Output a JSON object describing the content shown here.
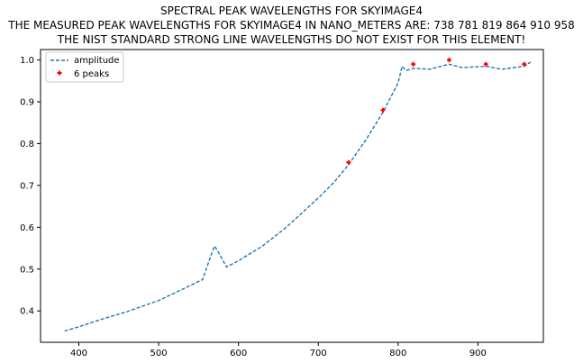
{
  "chart_data": {
    "type": "line",
    "title_lines": [
      "SPECTRAL PEAK WAVELENGTHS FOR SKYIMAGE4",
      "THE MEASURED PEAK WAVELENGTHS FOR SKYIMAGE4 IN NANO_METERS ARE: 738 781 819 864 910 958",
      "THE NIST STANDARD STRONG LINE WAVELENGTHS DO NOT EXIST FOR THIS ELEMENT!"
    ],
    "xlim": [
      352,
      982
    ],
    "ylim": [
      0.325,
      1.025
    ],
    "xticks": [
      400,
      500,
      600,
      700,
      800,
      900
    ],
    "yticks": [
      0.4,
      0.5,
      0.6,
      0.7,
      0.8,
      0.9,
      1.0
    ],
    "ytick_labels": [
      "0.4",
      "0.5",
      "0.6",
      "0.7",
      "0.8",
      "0.9",
      "1.0"
    ],
    "grid": false,
    "legend_position": "upper-left",
    "series": [
      {
        "name": "amplitude",
        "style": "dashed",
        "color": "#1f77b4",
        "x": [
          382,
          400,
          430,
          460,
          500,
          530,
          555,
          565,
          570,
          575,
          585,
          600,
          630,
          660,
          700,
          720,
          738,
          760,
          781,
          800,
          805,
          810,
          819,
          840,
          864,
          880,
          910,
          930,
          958,
          966
        ],
        "y": [
          0.352,
          0.362,
          0.381,
          0.398,
          0.425,
          0.452,
          0.475,
          0.53,
          0.555,
          0.54,
          0.505,
          0.52,
          0.555,
          0.6,
          0.67,
          0.708,
          0.75,
          0.81,
          0.875,
          0.945,
          0.985,
          0.975,
          0.98,
          0.978,
          0.99,
          0.982,
          0.985,
          0.978,
          0.985,
          0.995
        ]
      },
      {
        "name": "6 peaks",
        "style": "markers",
        "color": "#ff0000",
        "x": [
          738,
          781,
          819,
          864,
          910,
          958
        ],
        "y": [
          0.755,
          0.88,
          0.99,
          1.0,
          0.99,
          0.99
        ]
      }
    ]
  }
}
